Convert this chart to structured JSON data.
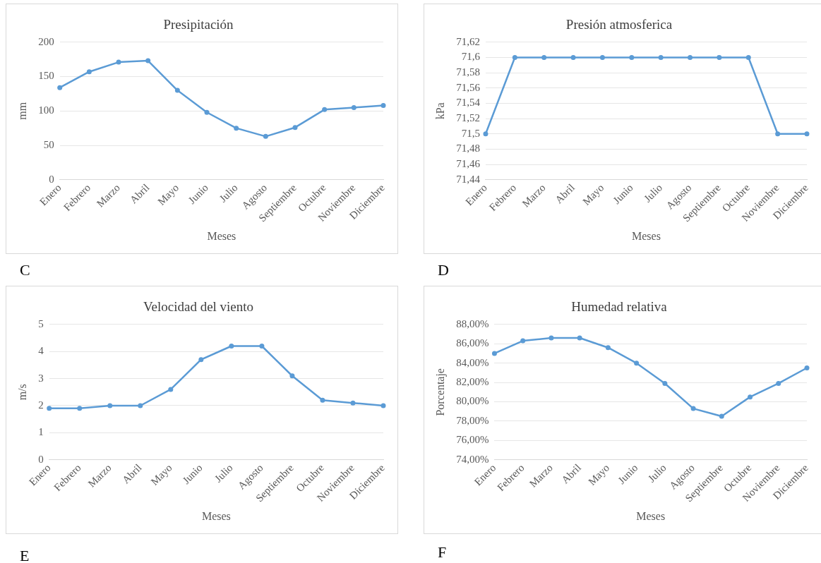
{
  "chart_data": [
    {
      "type": "line",
      "title": "Presipitación",
      "xlabel": "Meses",
      "ylabel": "mm",
      "categories": [
        "Enero",
        "Febrero",
        "Marzo",
        "Abril",
        "Mayo",
        "Junio",
        "Julio",
        "Agosto",
        "Septiembre",
        "Octubre",
        "Noviembre",
        "Diciembre"
      ],
      "series": [
        {
          "color": "#5b9bd5",
          "values": [
            134,
            157,
            171,
            173,
            130,
            98,
            75,
            63,
            76,
            102,
            105,
            108
          ]
        }
      ],
      "ylim": [
        0,
        200
      ],
      "yticks": [
        0,
        50,
        100,
        150,
        200
      ],
      "grid": "y",
      "marker": "circle",
      "line_style": "solid",
      "annotations": [
        "C"
      ]
    },
    {
      "type": "line",
      "title": "Presión atmosferica",
      "xlabel": "Meses",
      "ylabel": "kPa",
      "categories": [
        "Enero",
        "Febrero",
        "Marzo",
        "Abril",
        "Mayo",
        "Junio",
        "Julio",
        "Agosto",
        "Septiembre",
        "Octubre",
        "Noviembre",
        "Diciembre"
      ],
      "series": [
        {
          "color": "#5b9bd5",
          "values": [
            71.5,
            71.6,
            71.6,
            71.6,
            71.6,
            71.6,
            71.6,
            71.6,
            71.6,
            71.6,
            71.5,
            71.5
          ]
        }
      ],
      "ylim": [
        71.44,
        71.62
      ],
      "yticks": [
        {
          "value": 71.44,
          "label": "71,44"
        },
        {
          "value": 71.46,
          "label": "71,46"
        },
        {
          "value": 71.48,
          "label": "71,48"
        },
        {
          "value": 71.5,
          "label": "71,5"
        },
        {
          "value": 71.52,
          "label": "71,52"
        },
        {
          "value": 71.54,
          "label": "71,54"
        },
        {
          "value": 71.56,
          "label": "71,56"
        },
        {
          "value": 71.58,
          "label": "71,58"
        },
        {
          "value": 71.6,
          "label": "71,6"
        },
        {
          "value": 71.62,
          "label": "71,62"
        }
      ],
      "grid": "y",
      "marker": "circle",
      "line_style": "solid",
      "annotations": [
        "D"
      ]
    },
    {
      "type": "line",
      "title": "Velocidad del viento",
      "xlabel": "Meses",
      "ylabel": "m/s",
      "categories": [
        "Enero",
        "Febrero",
        "Marzo",
        "Abril",
        "Mayo",
        "Junio",
        "Julio",
        "Agosto",
        "Septiembre",
        "Octubre",
        "Noviembre",
        "Diciembre"
      ],
      "series": [
        {
          "color": "#5b9bd5",
          "values": [
            1.9,
            1.9,
            2.0,
            2.0,
            2.6,
            3.7,
            4.2,
            4.2,
            3.1,
            2.2,
            2.1,
            2.0
          ]
        }
      ],
      "ylim": [
        0,
        5
      ],
      "yticks": [
        0,
        1,
        2,
        3,
        4,
        5
      ],
      "grid": "y",
      "marker": "circle",
      "line_style": "solid",
      "annotations": [
        "E"
      ]
    },
    {
      "type": "line",
      "title": "Humedad relativa",
      "xlabel": "Meses",
      "ylabel": "Porcentaje",
      "categories": [
        "Enero",
        "Febrero",
        "Marzo",
        "Abril",
        "Mayo",
        "Junio",
        "Julio",
        "Agosto",
        "Septiembre",
        "Octubre",
        "Noviembre",
        "Diciembre"
      ],
      "series": [
        {
          "color": "#5b9bd5",
          "values": [
            85.0,
            86.3,
            86.6,
            86.6,
            85.6,
            84.0,
            81.9,
            79.3,
            78.5,
            80.5,
            81.9,
            83.5
          ]
        }
      ],
      "ylim": [
        74,
        88
      ],
      "yticks": [
        {
          "value": 74,
          "label": "74,00%"
        },
        {
          "value": 76,
          "label": "76,00%"
        },
        {
          "value": 78,
          "label": "78,00%"
        },
        {
          "value": 80,
          "label": "80,00%"
        },
        {
          "value": 82,
          "label": "82,00%"
        },
        {
          "value": 84,
          "label": "84,00%"
        },
        {
          "value": 86,
          "label": "86,00%"
        },
        {
          "value": 88,
          "label": "88,00%"
        }
      ],
      "grid": "y",
      "marker": "circle",
      "line_style": "solid",
      "annotations": [
        "F"
      ]
    }
  ]
}
